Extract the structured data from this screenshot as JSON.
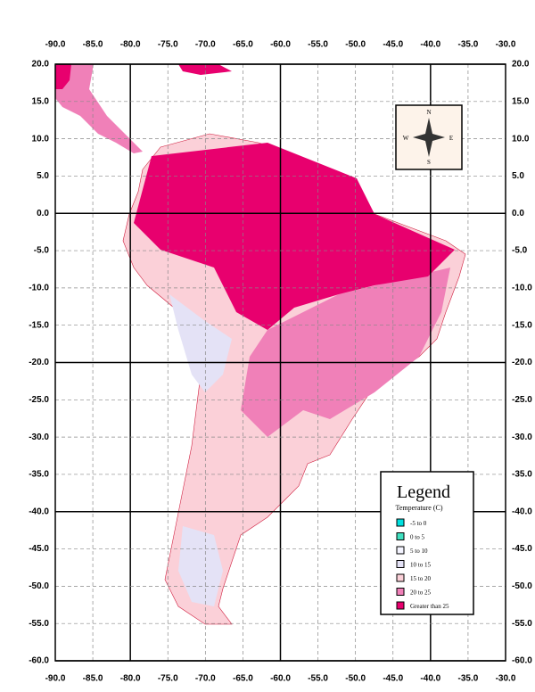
{
  "map": {
    "lon_range": [
      -90,
      -30
    ],
    "lat_range": [
      20,
      -60
    ],
    "major_interval": 20,
    "lon_ticks": [
      {
        "value": -90,
        "label": "-90.0"
      },
      {
        "value": -85,
        "label": "-85.0"
      },
      {
        "value": -80,
        "label": "-80.0"
      },
      {
        "value": -75,
        "label": "-75.0"
      },
      {
        "value": -70,
        "label": "-70.0"
      },
      {
        "value": -65,
        "label": "-65.0"
      },
      {
        "value": -60,
        "label": "-60.0"
      },
      {
        "value": -55,
        "label": "-55.0"
      },
      {
        "value": -50,
        "label": "-50.0"
      },
      {
        "value": -45,
        "label": "-45.0"
      },
      {
        "value": -40,
        "label": "-40.0"
      },
      {
        "value": -35,
        "label": "-35.0"
      },
      {
        "value": -30,
        "label": "-30.0"
      }
    ],
    "lat_ticks": [
      {
        "value": 20,
        "label": "20.0"
      },
      {
        "value": 15,
        "label": "15.0"
      },
      {
        "value": 10,
        "label": "10.0"
      },
      {
        "value": 5,
        "label": "5.0"
      },
      {
        "value": 0,
        "label": "0.0"
      },
      {
        "value": -5,
        "label": "-5.0"
      },
      {
        "value": -10,
        "label": "-10.0"
      },
      {
        "value": -15,
        "label": "-15.0"
      },
      {
        "value": -20,
        "label": "-20.0"
      },
      {
        "value": -25,
        "label": "-25.0"
      },
      {
        "value": -30,
        "label": "-30.0"
      },
      {
        "value": -35,
        "label": "-35.0"
      },
      {
        "value": -40,
        "label": "-40.0"
      },
      {
        "value": -45,
        "label": "-45.0"
      },
      {
        "value": -50,
        "label": "-50.0"
      },
      {
        "value": -55,
        "label": "-55.0"
      },
      {
        "value": -60,
        "label": "-60.0"
      }
    ],
    "compass": {
      "n": "N",
      "s": "S",
      "e": "E",
      "w": "W"
    },
    "legend": {
      "title": "Legend",
      "subtitle": "Temperature (C)",
      "items": [
        {
          "label": "-5 to 0",
          "color": "#00e0e0"
        },
        {
          "label": "0 to 5",
          "color": "#40e0c0"
        },
        {
          "label": "5 to 10",
          "color": "#f4f4ff"
        },
        {
          "label": "10 to 15",
          "color": "#e4e2f6"
        },
        {
          "label": "15 to 20",
          "color": "#fbd0d8"
        },
        {
          "label": "20 to 25",
          "color": "#f080b8"
        },
        {
          "label": "Greater than 25",
          "color": "#e8006e"
        }
      ]
    }
  }
}
